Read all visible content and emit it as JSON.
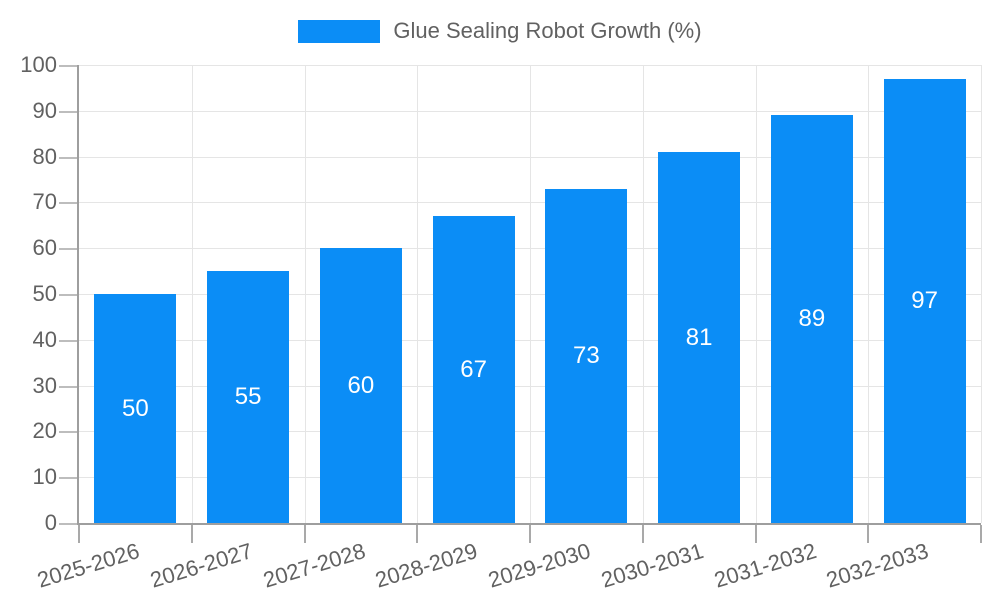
{
  "chart_data": {
    "type": "bar",
    "title": "",
    "categories": [
      "2025-2026",
      "2026-2027",
      "2027-2028",
      "2028-2029",
      "2029-2030",
      "2030-2031",
      "2031-2032",
      "2032-2033"
    ],
    "series": [
      {
        "name": "Glue Sealing Robot Growth (%)",
        "values": [
          50,
          55,
          60,
          67,
          73,
          81,
          89,
          97
        ]
      }
    ],
    "bar_value_labels": [
      "50",
      "55",
      "60",
      "67",
      "73",
      "81",
      "89",
      "97"
    ],
    "xlabel": "",
    "ylabel": "",
    "ylim": [
      0,
      100
    ],
    "y_ticks": [
      0,
      10,
      20,
      30,
      40,
      50,
      60,
      70,
      80,
      90,
      100
    ],
    "grid": true,
    "legend_position": "top-center",
    "x_label_rotation_deg": -17
  },
  "legend": {
    "label": "Glue Sealing Robot Growth (%)"
  },
  "colors": {
    "bar": "#0b8df6",
    "axis": "#9e9e9e",
    "gridline": "#e5e5e5",
    "tick": "#aaaaaa",
    "tick_label_text": "#616161",
    "legend_text": "#616161",
    "bar_value_text": "#ffffff",
    "background": "#ffffff"
  }
}
